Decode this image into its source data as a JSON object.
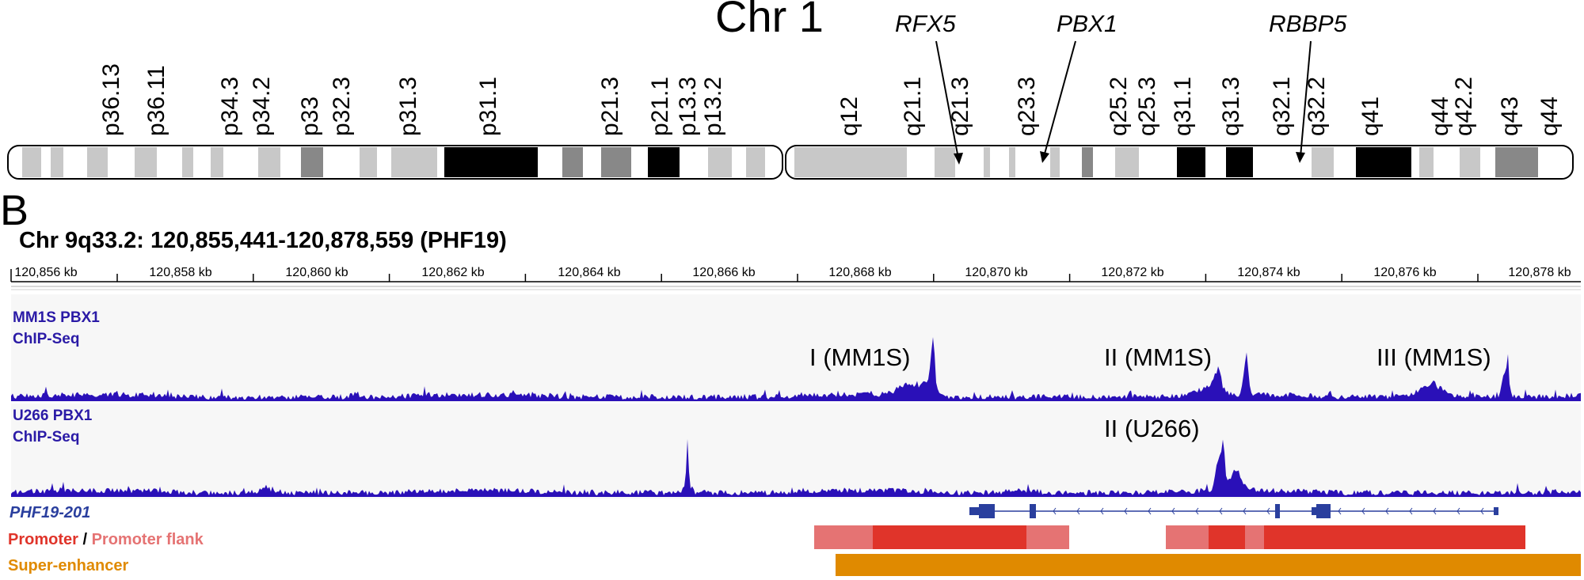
{
  "panelA": {
    "title": "Chr 1",
    "p_bands": [
      "p36.13",
      "p36.11",
      "p34.3",
      "p34.2",
      "p33",
      "p32.3",
      "p31.3",
      "p31.1",
      "p21.3",
      "p21.1",
      "p13.3",
      "p13.2"
    ],
    "q_bands": [
      "q12",
      "q21.1",
      "q21.3",
      "q23.3",
      "q25.2",
      "q25.3",
      "q31.1",
      "q31.3",
      "q32.1",
      "q32.2",
      "q41",
      "q44",
      "q42.2",
      "q43",
      "q44"
    ],
    "gene_markers": [
      {
        "name": "RFX5"
      },
      {
        "name": "PBX1"
      },
      {
        "name": "RBBP5"
      }
    ],
    "colors": {
      "black": "#000000",
      "dark": "#888888",
      "light": "#c8c8c8"
    }
  },
  "panelB": {
    "letter": "B",
    "locus": "Chr 9q33.2: 120,855,441-120,878,559 (PHF19)",
    "kb_ticks": [
      "120,856 kb",
      "120,858 kb",
      "120,860 kb",
      "120,862 kb",
      "120,864 kb",
      "120,866 kb",
      "120,868 kb",
      "120,870 kb",
      "120,872 kb",
      "120,874 kb",
      "120,876 kb",
      "120,878 kb"
    ],
    "tracks": [
      {
        "line1": "MM1S PBX1",
        "line2": "ChIP-Seq",
        "peaks": [
          {
            "label": "I (MM1S)"
          },
          {
            "label": "II (MM1S)"
          },
          {
            "label": "III (MM1S)"
          }
        ]
      },
      {
        "line1": "U266 PBX1",
        "line2": "ChIP-Seq",
        "peaks": [
          {
            "label": "II (U266)"
          }
        ]
      }
    ],
    "transcript": "PHF19-201",
    "legend": {
      "promoter": "Promoter",
      "separator": " / ",
      "flank": "Promoter flank",
      "super_enhancer": "Super-enhancer"
    },
    "colors": {
      "signal": "#2a10b8",
      "track_label": "#2a1aa6",
      "transcript": "#2a3f9e",
      "promoter": "#e0342a",
      "flank": "#e57373",
      "super_enhancer": "#e08a00",
      "track_bg": "#f7f7f7"
    }
  }
}
